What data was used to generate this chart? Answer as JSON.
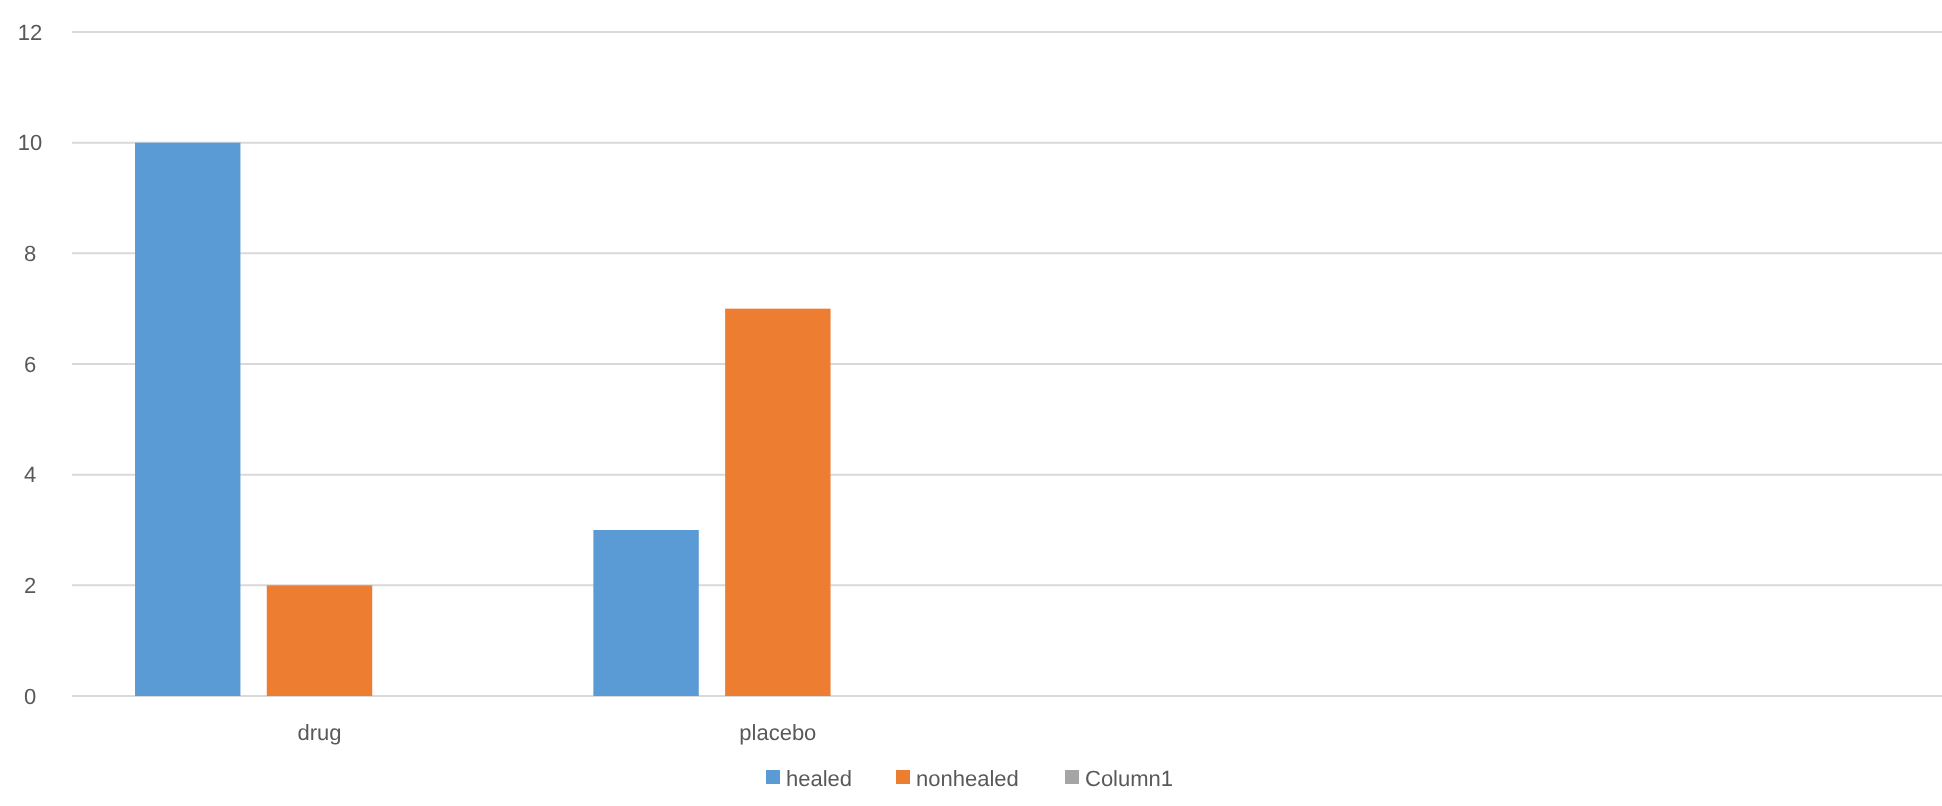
{
  "chart_data": {
    "type": "bar",
    "categories": [
      "drug",
      "placebo",
      null,
      null
    ],
    "series": [
      {
        "name": "healed",
        "color": "#5b9bd5",
        "values": [
          10,
          3,
          null,
          null
        ]
      },
      {
        "name": "nonhealed",
        "color": "#ed7d31",
        "values": [
          2,
          7,
          null,
          null
        ]
      },
      {
        "name": "Column1",
        "color": "#a5a5a5",
        "values": [
          null,
          null,
          null,
          null
        ]
      }
    ],
    "ylim": [
      0,
      12
    ],
    "yticks": [
      0,
      2,
      4,
      6,
      8,
      10,
      12
    ],
    "grid": "y",
    "legend": "bottom"
  }
}
